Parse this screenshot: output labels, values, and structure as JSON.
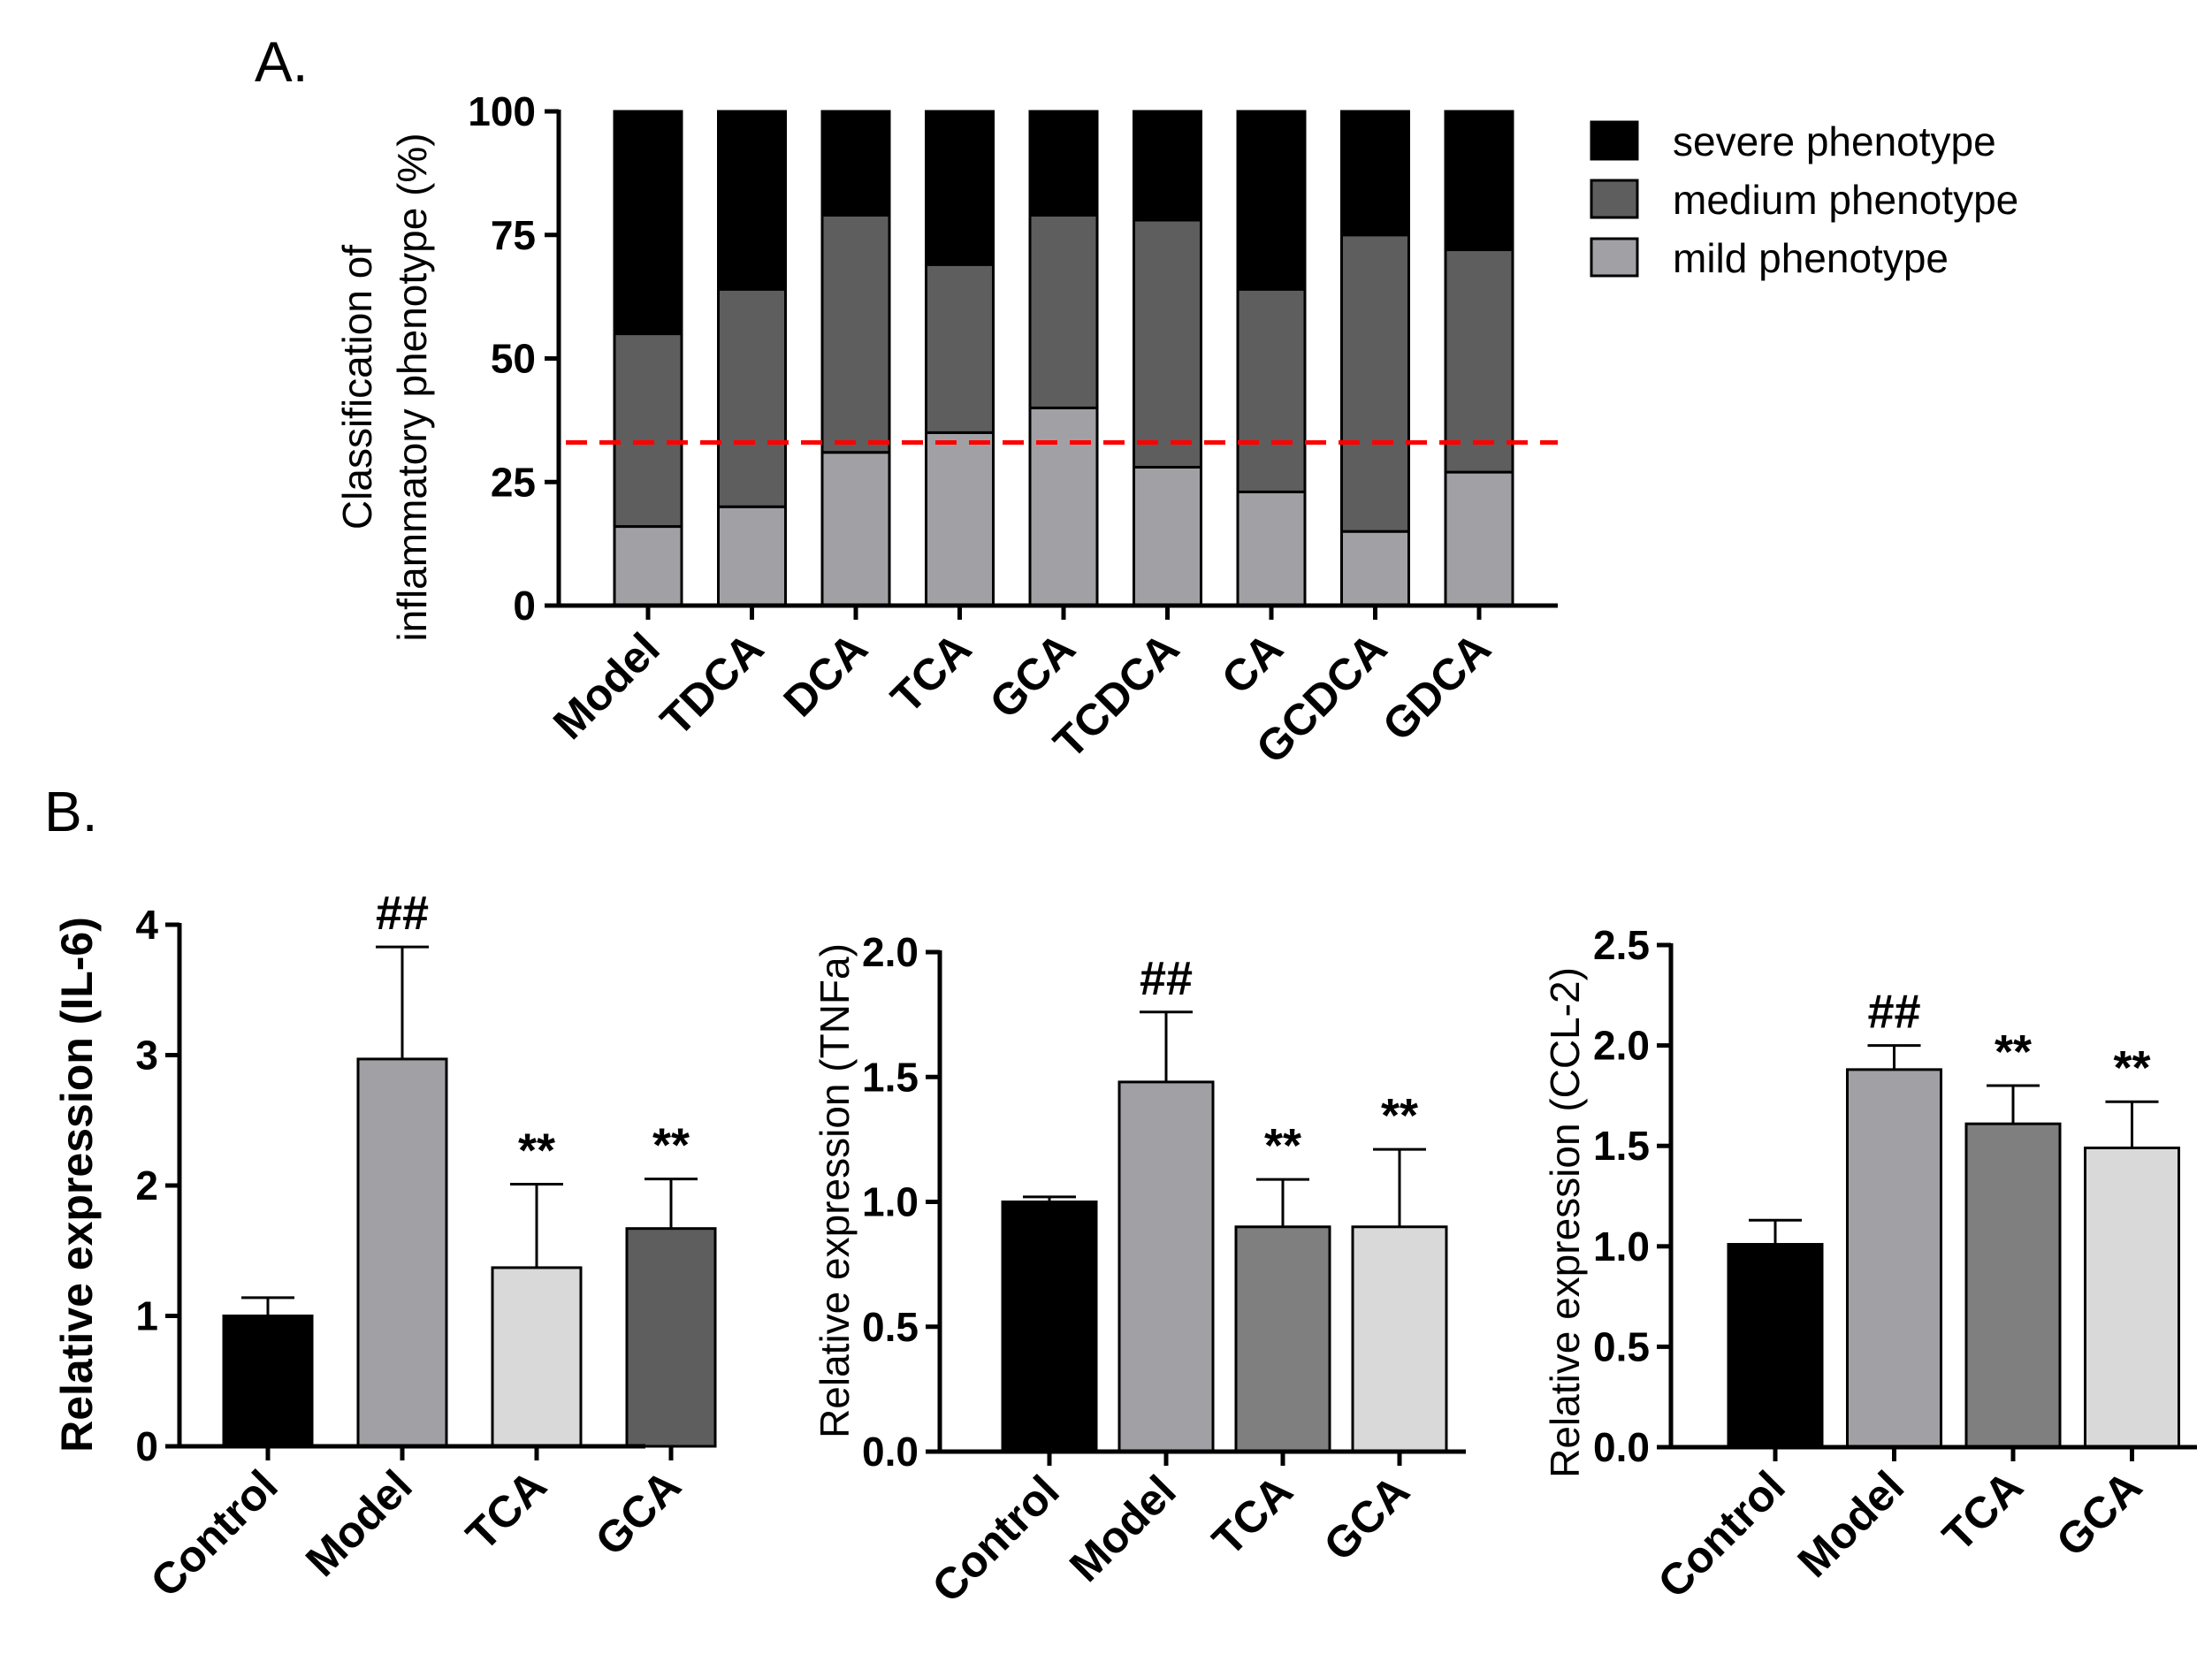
{
  "panel_labels": {
    "a": "A.",
    "b": "B."
  },
  "chart_data": [
    {
      "type": "bar",
      "stacked": true,
      "id": "A",
      "title": "",
      "ylabel_line1": "Classification of",
      "ylabel_line2": "inflammatory phenotype (%)",
      "ylim": [
        0,
        100
      ],
      "yticks": [
        "0",
        "25",
        "50",
        "75",
        "100"
      ],
      "categories": [
        "Model",
        "TDCA",
        "DCA",
        "TCA",
        "GCA",
        "TCDCA",
        "CA",
        "GCDCA",
        "GDCA"
      ],
      "series": [
        {
          "name": "mild phenotype",
          "color": "#a1a1a5",
          "values": [
            16,
            20,
            31,
            35,
            40,
            28,
            23,
            15,
            27
          ]
        },
        {
          "name": "medium phenotype",
          "color": "#5e5e5e",
          "values": [
            39,
            44,
            48,
            34,
            39,
            50,
            41,
            60,
            45
          ]
        },
        {
          "name": "severe phenotype",
          "color": "#000000",
          "values": [
            45,
            36,
            21,
            31,
            21,
            22,
            36,
            25,
            28
          ]
        }
      ],
      "legend_order": [
        "severe phenotype",
        "medium phenotype",
        "mild phenotype"
      ],
      "reference_line": {
        "value": 33,
        "color": "#ff0000",
        "style": "dashed"
      },
      "legend_position": "right"
    },
    {
      "type": "bar",
      "id": "IL6",
      "ylabel": "Relative expression (IL-6)",
      "ylim": [
        0,
        4
      ],
      "yticks": [
        "0",
        "1",
        "2",
        "3",
        "4"
      ],
      "categories": [
        "Control",
        "Model",
        "TCA",
        "GCA"
      ],
      "values": [
        1.0,
        2.97,
        1.37,
        1.67
      ],
      "errors": [
        0.14,
        0.86,
        0.64,
        0.38
      ],
      "colors": [
        "#000000",
        "#a1a1a5",
        "#d9d9d9",
        "#5e5e5e"
      ],
      "annotations": [
        "",
        "##",
        "**",
        "**"
      ]
    },
    {
      "type": "bar",
      "id": "TNFa",
      "ylabel": "Relative expression  (TNFa)",
      "ylim": [
        0,
        2.0
      ],
      "yticks": [
        "0.0",
        "0.5",
        "1.0",
        "1.5",
        "2.0"
      ],
      "categories": [
        "Control",
        "Model",
        "TCA",
        "GCA"
      ],
      "values": [
        1.0,
        1.48,
        0.9,
        0.9
      ],
      "errors": [
        0.02,
        0.28,
        0.19,
        0.31
      ],
      "colors": [
        "#000000",
        "#a1a1a5",
        "#7f7f7f",
        "#d9d9d9"
      ],
      "annotations": [
        "",
        "##",
        "**",
        "**"
      ]
    },
    {
      "type": "bar",
      "id": "CCL2",
      "ylabel": "Relative expression (CCL-2)",
      "ylim": [
        0,
        2.5
      ],
      "yticks": [
        "0.0",
        "0.5",
        "1.0",
        "1.5",
        "2.0",
        "2.5"
      ],
      "categories": [
        "Control",
        "Model",
        "TCA",
        "GCA"
      ],
      "values": [
        1.01,
        1.88,
        1.61,
        1.49
      ],
      "errors": [
        0.12,
        0.12,
        0.19,
        0.23
      ],
      "colors": [
        "#000000",
        "#a1a1a5",
        "#7f7f7f",
        "#d9d9d9"
      ],
      "annotations": [
        "",
        "##",
        "**",
        "**"
      ]
    }
  ]
}
